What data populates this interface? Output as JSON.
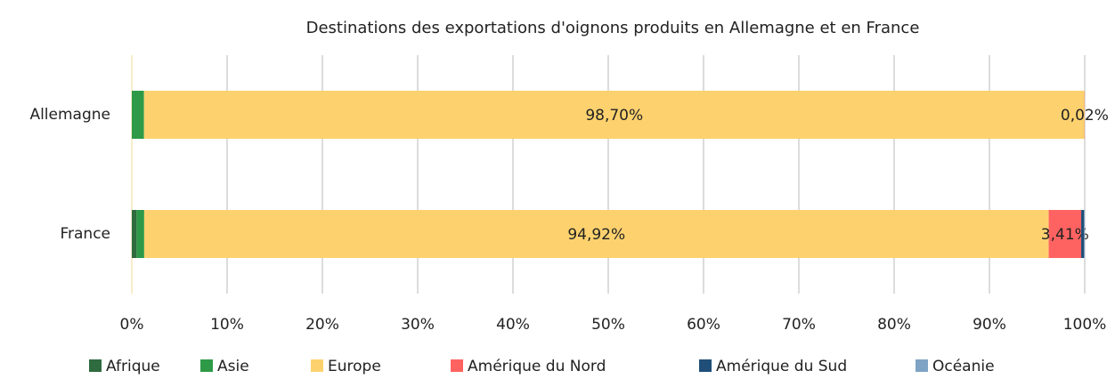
{
  "chart_data": {
    "type": "stacked_barh",
    "title": "Destinations des exportations d'oignons produits en Allemagne et en France",
    "categories": [
      "Allemagne",
      "France"
    ],
    "series": [
      {
        "name": "Afrique",
        "color": "#2e6b3e",
        "values": [
          0,
          0.5
        ]
      },
      {
        "name": "Asie",
        "color": "#2e9a47",
        "values": [
          1.28,
          0.8
        ]
      },
      {
        "name": "Europe",
        "color": "#fdd26e",
        "values": [
          98.7,
          94.92
        ],
        "value_labels": [
          "98,70%",
          "94,92%"
        ]
      },
      {
        "name": "Amérique du Nord",
        "color": "#ff6361",
        "values": [
          0.02,
          3.41
        ],
        "value_labels": [
          "0,02%",
          "3,41%"
        ]
      },
      {
        "name": "Amérique du Sud",
        "color": "#1f4e79",
        "values": [
          0,
          0.3
        ]
      },
      {
        "name": "Océanie",
        "color": "#7fa3c4",
        "values": [
          0,
          0.07
        ]
      }
    ],
    "xlim": [
      0,
      100
    ],
    "xticks": [
      {
        "value": 0,
        "label": "0%"
      },
      {
        "value": 10,
        "label": "10%"
      },
      {
        "value": 20,
        "label": "20%"
      },
      {
        "value": 30,
        "label": "30%"
      },
      {
        "value": 40,
        "label": "40%"
      },
      {
        "value": 50,
        "label": "50%"
      },
      {
        "value": 60,
        "label": "60%"
      },
      {
        "value": 70,
        "label": "70%"
      },
      {
        "value": 80,
        "label": "80%"
      },
      {
        "value": 90,
        "label": "90%"
      },
      {
        "value": 100,
        "label": "100%"
      }
    ],
    "grid": true,
    "legend": "bottom"
  }
}
